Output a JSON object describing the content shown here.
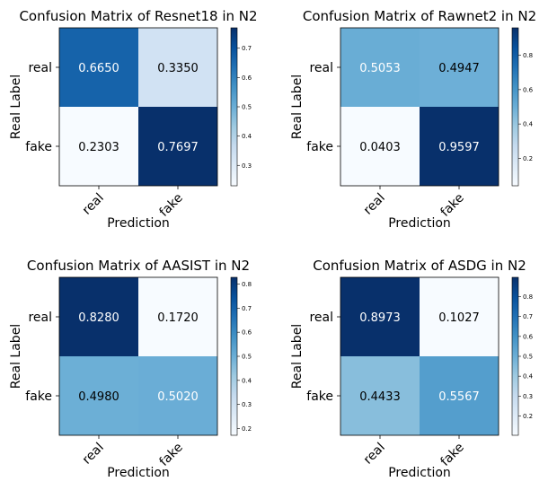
{
  "chart_data": [
    {
      "type": "heatmap",
      "title": "Confusion Matrix of Resnet18 in N2",
      "xlabel": "Prediction",
      "ylabel": "Real Label",
      "x_categories": [
        "real",
        "fake"
      ],
      "y_categories": [
        "real",
        "fake"
      ],
      "matrix": [
        [
          0.665,
          0.335
        ],
        [
          0.2303,
          0.7697
        ]
      ],
      "labels": [
        [
          "0.6650",
          "0.3350"
        ],
        [
          "0.2303",
          "0.7697"
        ]
      ],
      "colorbar": {
        "range": [
          0.2303,
          0.7697
        ],
        "ticks": [
          "0.3",
          "0.4",
          "0.5",
          "0.6",
          "0.7"
        ]
      },
      "colormap": "Blues"
    },
    {
      "type": "heatmap",
      "title": "Confusion Matrix of Rawnet2 in N2",
      "xlabel": "Prediction",
      "ylabel": "Real Label",
      "x_categories": [
        "real",
        "fake"
      ],
      "y_categories": [
        "real",
        "fake"
      ],
      "matrix": [
        [
          0.5053,
          0.4947
        ],
        [
          0.0403,
          0.9597
        ]
      ],
      "labels": [
        [
          "0.5053",
          "0.4947"
        ],
        [
          "0.0403",
          "0.9597"
        ]
      ],
      "colorbar": {
        "range": [
          0.0403,
          0.9597
        ],
        "ticks": [
          "0.2",
          "0.4",
          "0.6",
          "0.8"
        ]
      },
      "colormap": "Blues"
    },
    {
      "type": "heatmap",
      "title": "Confusion Matrix of AASIST in N2",
      "xlabel": "Prediction",
      "ylabel": "Real Label",
      "x_categories": [
        "real",
        "fake"
      ],
      "y_categories": [
        "real",
        "fake"
      ],
      "matrix": [
        [
          0.828,
          0.172
        ],
        [
          0.498,
          0.502
        ]
      ],
      "labels": [
        [
          "0.8280",
          "0.1720"
        ],
        [
          "0.4980",
          "0.5020"
        ]
      ],
      "colorbar": {
        "range": [
          0.172,
          0.828
        ],
        "ticks": [
          "0.2",
          "0.3",
          "0.4",
          "0.5",
          "0.6",
          "0.7",
          "0.8"
        ]
      },
      "colormap": "Blues"
    },
    {
      "type": "heatmap",
      "title": "Confusion Matrix of ASDG in N2",
      "xlabel": "Prediction",
      "ylabel": "Real Label",
      "x_categories": [
        "real",
        "fake"
      ],
      "y_categories": [
        "real",
        "fake"
      ],
      "matrix": [
        [
          0.8973,
          0.1027
        ],
        [
          0.4433,
          0.5567
        ]
      ],
      "labels": [
        [
          "0.8973",
          "0.1027"
        ],
        [
          "0.4433",
          "0.5567"
        ]
      ],
      "colorbar": {
        "range": [
          0.1027,
          0.8973
        ],
        "ticks": [
          "0.2",
          "0.3",
          "0.4",
          "0.5",
          "0.6",
          "0.7",
          "0.8"
        ]
      },
      "colormap": "Blues"
    }
  ]
}
